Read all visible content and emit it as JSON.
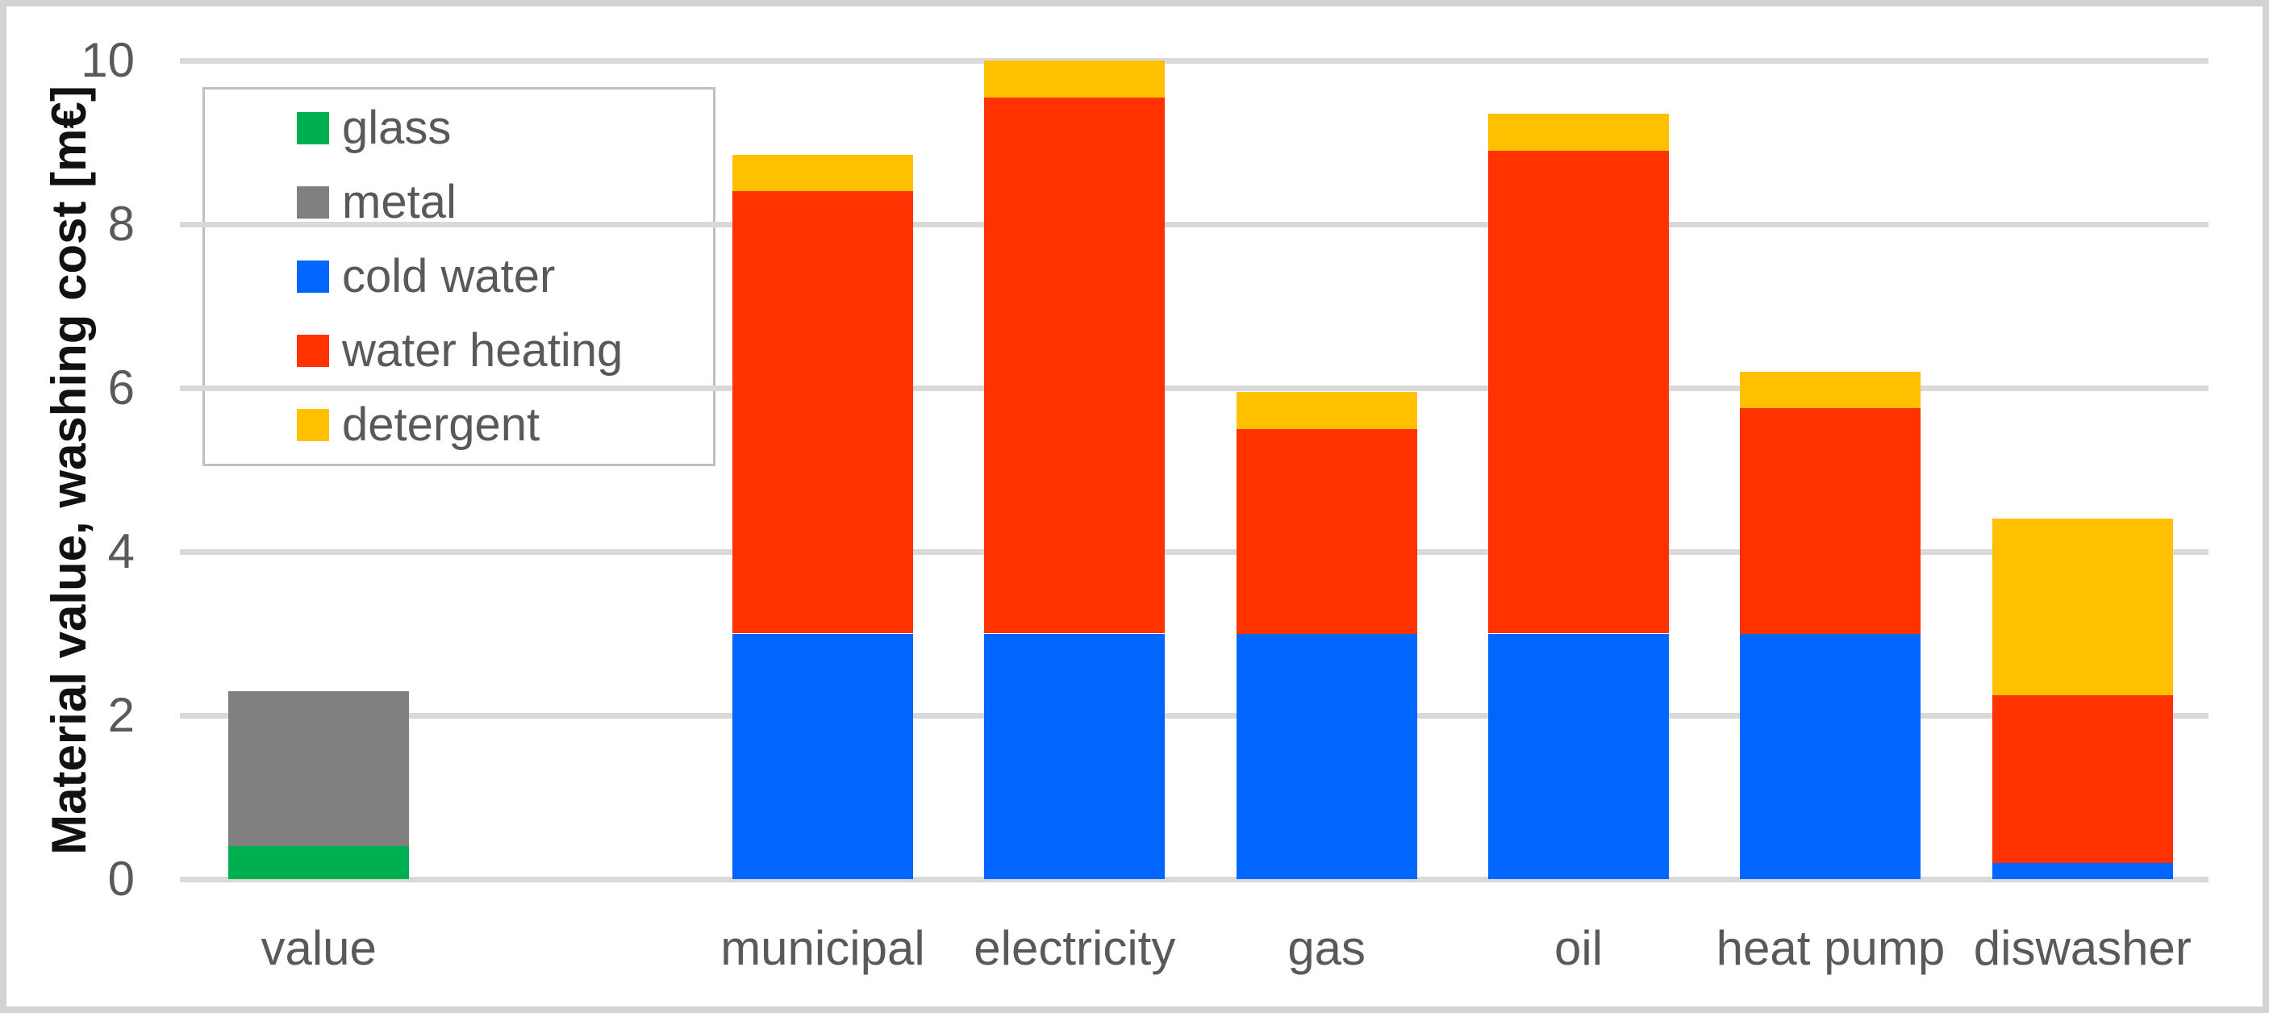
{
  "chart_data": {
    "type": "bar",
    "stacked": true,
    "title": "",
    "xlabel": "",
    "ylabel": "Material value, washing cost [m€]",
    "ylim": [
      0,
      10
    ],
    "yticks": [
      0,
      2,
      4,
      6,
      8,
      10
    ],
    "grid": true,
    "legend_position": "upper-left",
    "categories": [
      "value",
      "",
      "municipal",
      "electricity",
      "gas",
      "oil",
      "heat pump",
      "diswasher"
    ],
    "series": [
      {
        "name": "glass",
        "color": "#00B050",
        "values": [
          0.4,
          0,
          0,
          0,
          0,
          0,
          0,
          0
        ]
      },
      {
        "name": "metal",
        "color": "#808080",
        "values": [
          1.9,
          0,
          0,
          0,
          0,
          0,
          0,
          0
        ]
      },
      {
        "name": "cold water",
        "color": "#0066FF",
        "values": [
          0,
          0,
          3.0,
          3.0,
          3.0,
          3.0,
          3.0,
          0.2
        ]
      },
      {
        "name": "water heating",
        "color": "#FF3200",
        "values": [
          0,
          0,
          5.4,
          6.55,
          2.5,
          5.9,
          2.75,
          2.05
        ]
      },
      {
        "name": "detergent",
        "color": "#FFC000",
        "values": [
          0,
          0,
          0.45,
          0.45,
          0.45,
          0.45,
          0.45,
          2.15
        ]
      }
    ],
    "totals": [
      2.3,
      0,
      8.85,
      10.0,
      5.95,
      9.35,
      6.2,
      4.4
    ]
  },
  "colors": {
    "gridline": "#d9d9d9",
    "tick_label": "#595959",
    "axis_title": "#111111",
    "legend_border": "#bfbfbf",
    "frame_border": "#d3d3d3",
    "background": "#ffffff"
  }
}
